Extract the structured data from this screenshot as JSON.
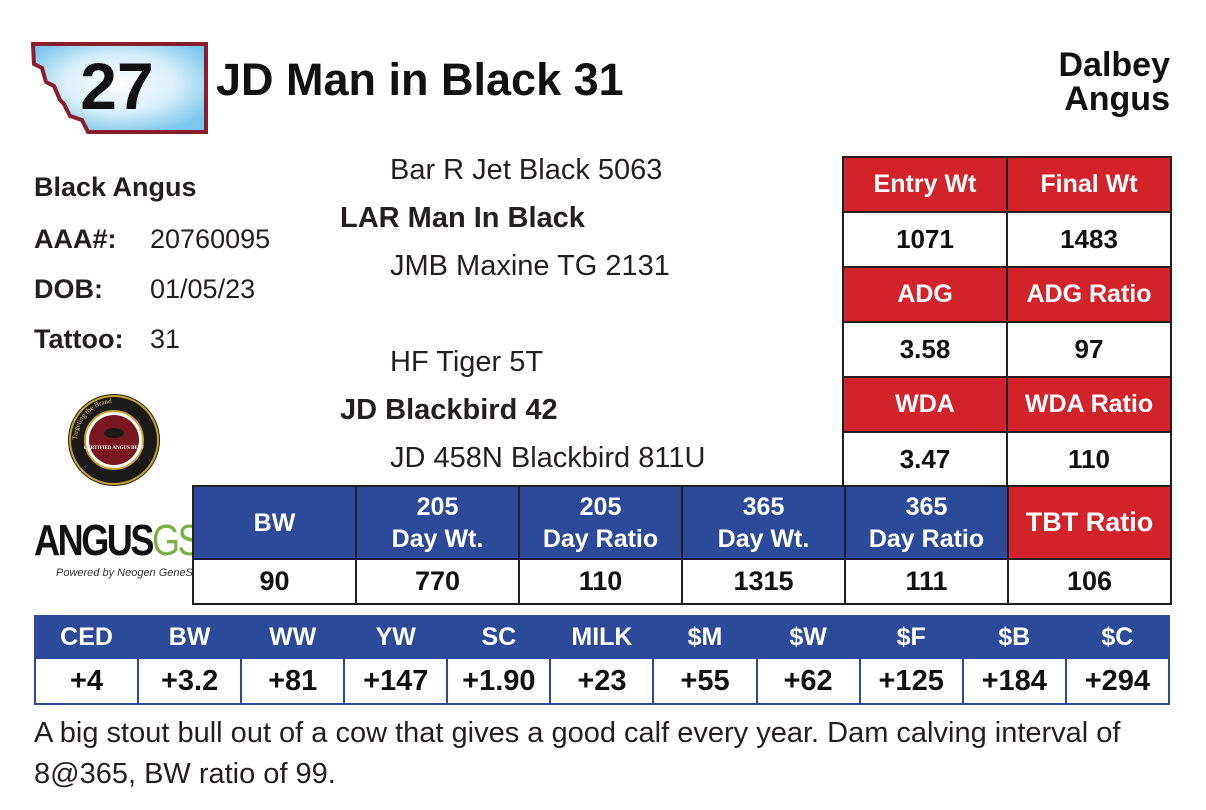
{
  "lot_number": "27",
  "animal_name": "JD Man in Black 31",
  "owner": [
    "Dalbey",
    "Angus"
  ],
  "info": {
    "breed": "Black Angus",
    "aaa_label": "AAA#:",
    "aaa_value": "20760095",
    "dob_label": "DOB:",
    "dob_value": "01/05/23",
    "tattoo_label": "Tattoo:",
    "tattoo_value": "31"
  },
  "pedigree": {
    "sire_sire": "Bar R Jet Black 5063",
    "sire": "LAR Man In Black",
    "sire_dam": "JMB Maxine TG 2131",
    "dam_sire": "HF Tiger 5T",
    "dam": "JD Blackbird 42",
    "dam_dam": "JD 458N Blackbird 811U"
  },
  "performance": [
    {
      "label": "Entry Wt",
      "value": "1071"
    },
    {
      "label": "Final Wt",
      "value": "1483"
    },
    {
      "label": "ADG",
      "value": "3.58"
    },
    {
      "label": "ADG Ratio",
      "value": "97"
    },
    {
      "label": "WDA",
      "value": "3.47"
    },
    {
      "label": "WDA Ratio",
      "value": "110"
    }
  ],
  "weights": [
    {
      "label_1": "",
      "label_2": "BW",
      "value": "90"
    },
    {
      "label_1": "205",
      "label_2": "Day Wt.",
      "value": "770"
    },
    {
      "label_1": "205",
      "label_2": "Day Ratio",
      "value": "110"
    },
    {
      "label_1": "365",
      "label_2": "Day Wt.",
      "value": "1315"
    },
    {
      "label_1": "365",
      "label_2": "Day Ratio",
      "value": "111"
    },
    {
      "label_1": "",
      "label_2": "TBT Ratio",
      "value": "106"
    }
  ],
  "epds": [
    {
      "label": "CED",
      "value": "+4"
    },
    {
      "label": "BW",
      "value": "+3.2"
    },
    {
      "label": "WW",
      "value": "+81"
    },
    {
      "label": "YW",
      "value": "+147"
    },
    {
      "label": "SC",
      "value": "+1.90"
    },
    {
      "label": "MILK",
      "value": "+23"
    },
    {
      "label": "$M",
      "value": "+55"
    },
    {
      "label": "$W",
      "value": "+62"
    },
    {
      "label": "$F",
      "value": "+125"
    },
    {
      "label": "$B",
      "value": "+184"
    },
    {
      "label": "$C",
      "value": "+294"
    }
  ],
  "description": "A big stout bull out of a cow that gives a good calf every year. Dam calving interval of 8@365, BW ratio of 99.",
  "logos": {
    "angusgs_main": "ANGUS",
    "angusgs_gs": "GS",
    "angusgs_tag": "Powered by Neogen GeneSeek",
    "cab_text": "CERTIFIED ANGUS BEEF",
    "cab_ring": "Targeting the Brand"
  },
  "colors": {
    "red": "#d2232a",
    "blue": "#2b4a9a",
    "badge_border": "#8b1e2d",
    "badge_fill": "#bfe4f7"
  }
}
